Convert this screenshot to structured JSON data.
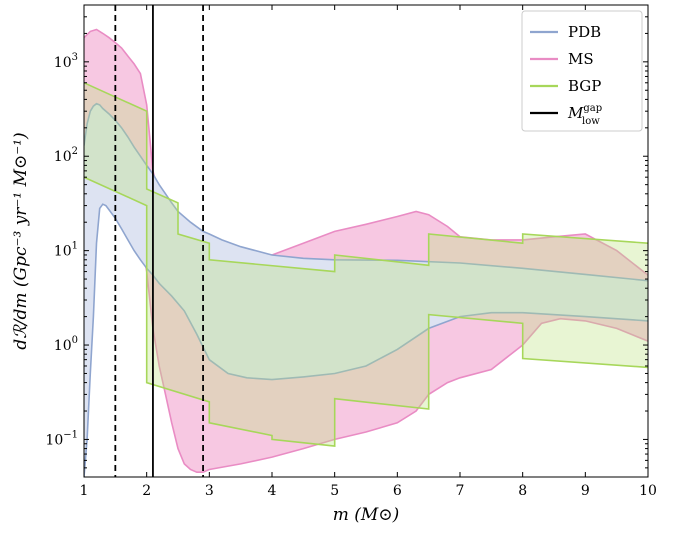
{
  "chart_data": {
    "type": "area",
    "title": "",
    "xlabel": "m (M⊙)",
    "ylabel": "dℛ/dm (Gpc⁻³ yr⁻¹ M⊙⁻¹)",
    "xlim": [
      1,
      10
    ],
    "ylim": [
      0.04,
      4000
    ],
    "yscale": "log",
    "grid": false,
    "legend_position": "top-right",
    "x_ticks": [
      "1",
      "2",
      "3",
      "4",
      "5",
      "6",
      "7",
      "8",
      "9",
      "10"
    ],
    "y_ticks": [
      {
        "value": 0.1,
        "base": "10",
        "exp": "−1"
      },
      {
        "value": 1,
        "base": "10",
        "exp": "0"
      },
      {
        "value": 10,
        "base": "10",
        "exp": "1"
      },
      {
        "value": 100,
        "base": "10",
        "exp": "2"
      },
      {
        "value": 1000,
        "base": "10",
        "exp": "3"
      }
    ],
    "legend": [
      {
        "label": "PDB",
        "color": "#8fa5cf",
        "kind": "line"
      },
      {
        "label": "MS",
        "color": "#e98cc4",
        "kind": "line"
      },
      {
        "label": "BGP",
        "color": "#a7d75a",
        "kind": "line"
      },
      {
        "label": "M",
        "sub": "low",
        "sup": "gap",
        "color": "#000000",
        "kind": "line"
      }
    ],
    "vertical_lines": [
      {
        "x": 1.5,
        "style": "dashed",
        "color": "#000000"
      },
      {
        "x": 2.1,
        "style": "solid",
        "color": "#000000"
      },
      {
        "x": 2.9,
        "style": "dashed",
        "color": "#000000"
      }
    ],
    "series": [
      {
        "name": "MS",
        "color": "#e98cc4",
        "fill": "#f7c8e2",
        "upper": {
          "x": [
            1.0,
            1.1,
            1.2,
            1.3,
            1.4,
            1.5,
            1.6,
            1.7,
            1.8,
            1.9,
            2.0,
            2.1,
            2.2,
            2.3,
            2.4,
            2.5,
            2.6,
            2.7,
            2.8,
            2.9,
            3.0,
            3.2,
            3.5,
            4.0,
            4.5,
            5.0,
            5.5,
            6.0,
            6.3,
            6.5,
            6.8,
            7.0,
            7.5,
            8.0,
            8.5,
            9.0,
            9.5,
            10.0
          ],
          "y": [
            1800,
            2100,
            2200,
            2000,
            1800,
            1600,
            1400,
            1150,
            950,
            750,
            350,
            70,
            40,
            25,
            18,
            12,
            8,
            5.5,
            4.8,
            4.6,
            5.0,
            6.0,
            7.5,
            9.0,
            12,
            16,
            19,
            23,
            26,
            24,
            18,
            14,
            13,
            13,
            14,
            15,
            10,
            5.5
          ]
        },
        "lower": {
          "x": [
            1.0,
            1.1,
            1.2,
            1.3,
            1.4,
            1.5,
            1.6,
            1.7,
            1.8,
            1.9,
            2.0,
            2.1,
            2.2,
            2.3,
            2.4,
            2.5,
            2.6,
            2.7,
            2.8,
            2.9,
            3.0,
            3.5,
            4.0,
            4.5,
            5.0,
            5.5,
            6.0,
            6.3,
            6.5,
            6.8,
            7.0,
            7.5,
            8.0,
            8.3,
            8.6,
            9.0,
            9.5,
            10.0
          ],
          "y": [
            80,
            110,
            130,
            135,
            120,
            95,
            70,
            50,
            30,
            15,
            6,
            1.5,
            0.6,
            0.3,
            0.15,
            0.08,
            0.055,
            0.048,
            0.045,
            0.045,
            0.048,
            0.055,
            0.065,
            0.08,
            0.1,
            0.12,
            0.15,
            0.2,
            0.3,
            0.4,
            0.45,
            0.55,
            1.0,
            1.7,
            1.9,
            1.8,
            1.5,
            1.1
          ]
        }
      },
      {
        "name": "PDB",
        "color": "#8fa5cf",
        "fill": "#dde3f2",
        "upper": {
          "x": [
            1.0,
            1.05,
            1.1,
            1.15,
            1.2,
            1.25,
            1.3,
            1.4,
            1.5,
            1.6,
            1.7,
            1.8,
            1.9,
            2.0,
            2.1,
            2.2,
            2.3,
            2.4,
            2.5,
            2.7,
            2.9,
            3.0,
            3.2,
            3.5,
            4.0,
            4.5,
            5.0,
            6.0,
            7.0,
            8.0,
            9.0,
            10.0
          ],
          "y": [
            130,
            220,
            300,
            340,
            360,
            350,
            320,
            280,
            240,
            200,
            160,
            125,
            100,
            80,
            65,
            50,
            40,
            32,
            26,
            20,
            16,
            15,
            13,
            11,
            9,
            8.3,
            8.0,
            7.9,
            7.4,
            6.5,
            5.6,
            4.8
          ]
        },
        "lower": {
          "x": [
            1.0,
            1.05,
            1.1,
            1.15,
            1.2,
            1.25,
            1.3,
            1.35,
            1.4,
            1.5,
            1.6,
            1.7,
            1.8,
            1.9,
            2.0,
            2.1,
            2.2,
            2.4,
            2.6,
            2.8,
            3.0,
            3.3,
            3.6,
            4.0,
            4.5,
            5.0,
            5.5,
            6.0,
            6.5,
            7.0,
            7.5,
            8.0,
            9.0,
            10.0
          ],
          "y": [
            0.04,
            0.1,
            0.5,
            2,
            12,
            28,
            31,
            30,
            27,
            22,
            17,
            13,
            10,
            8,
            6.5,
            5.5,
            4.5,
            3.3,
            2.3,
            1.3,
            0.7,
            0.5,
            0.45,
            0.43,
            0.46,
            0.5,
            0.6,
            0.9,
            1.5,
            2.0,
            2.2,
            2.2,
            2.0,
            1.8
          ]
        }
      },
      {
        "name": "BGP",
        "color": "#a7d75a",
        "fill": "rgba(190,225,130,0.35)",
        "upper": {
          "x": [
            1.0,
            2.0,
            2.0,
            2.5,
            2.5,
            3.0,
            3.0,
            5.0,
            5.0,
            6.5,
            6.5,
            8.0,
            8.0,
            10.0
          ],
          "y": [
            600,
            300,
            45,
            32,
            15,
            12,
            8,
            6,
            9,
            7,
            15,
            12,
            15,
            12
          ]
        },
        "lower": {
          "x": [
            1.0,
            2.0,
            2.0,
            3.0,
            3.0,
            4.0,
            4.0,
            5.0,
            5.0,
            6.5,
            6.5,
            8.0,
            8.0,
            10.0
          ],
          "y": [
            60,
            30,
            0.4,
            0.25,
            0.15,
            0.11,
            0.1,
            0.085,
            0.27,
            0.21,
            2.1,
            1.7,
            0.72,
            0.58
          ]
        }
      }
    ]
  }
}
